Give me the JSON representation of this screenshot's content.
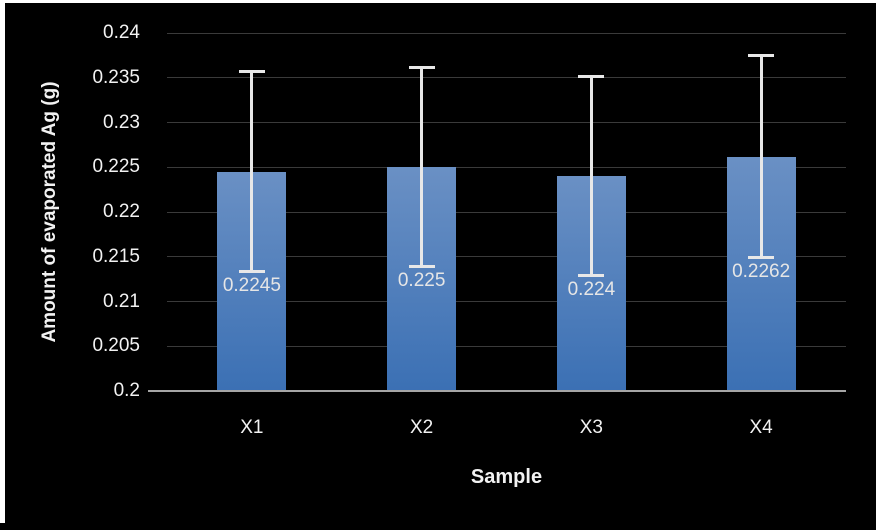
{
  "chart_data": {
    "type": "bar",
    "title": "",
    "xlabel": "Sample",
    "ylabel": "Amount of evaporated Ag (g)",
    "categories": [
      "X1",
      "X2",
      "X3",
      "X4"
    ],
    "values": [
      0.2245,
      0.225,
      0.224,
      0.2262
    ],
    "data_labels": [
      "0.2245",
      "0.225",
      "0.224",
      "0.2262"
    ],
    "error": [
      0.0112,
      0.0112,
      0.0112,
      0.0113
    ],
    "ylim": [
      0.2,
      0.24
    ],
    "yticks": [
      {
        "value": 0.24,
        "label": "0.24"
      },
      {
        "value": 0.235,
        "label": "0.235"
      },
      {
        "value": 0.23,
        "label": "0.23"
      },
      {
        "value": 0.225,
        "label": "0.225"
      },
      {
        "value": 0.22,
        "label": "0.22"
      },
      {
        "value": 0.215,
        "label": "0.215"
      },
      {
        "value": 0.21,
        "label": "0.21"
      },
      {
        "value": 0.205,
        "label": "0.205"
      },
      {
        "value": 0.2,
        "label": "0.2"
      }
    ],
    "grid": true,
    "legend": "none",
    "colors": {
      "background": "#000000",
      "bar_gradient_top": "#6A90C4",
      "bar_gradient_bottom": "#3B70B4",
      "gridline": "#3A3A3A",
      "axis_line": "#A6A6A6",
      "text": "#F2F2F2",
      "data_label_text": "#E6E6E6",
      "error_bar": "#E8E8E8",
      "frame_border": "#FFFFFF"
    }
  }
}
